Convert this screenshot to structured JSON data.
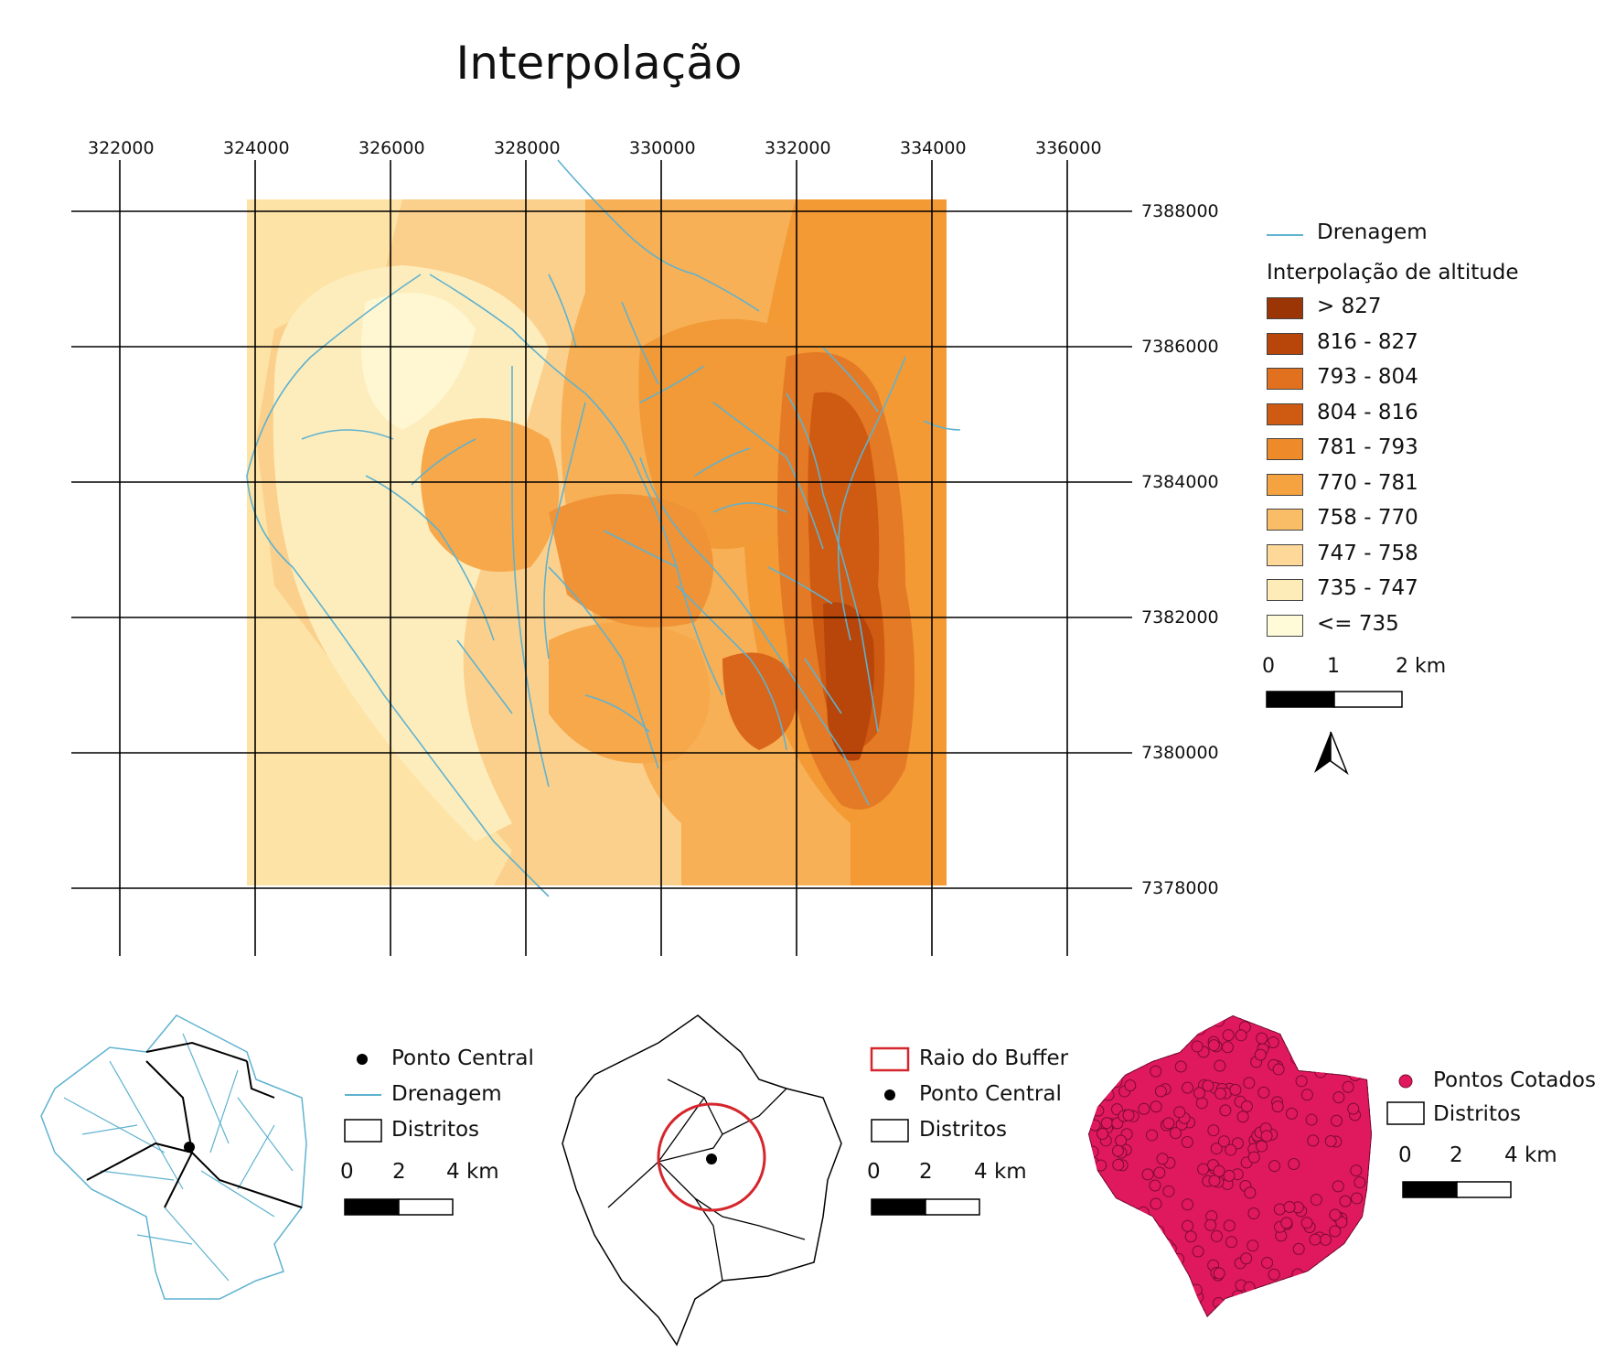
{
  "title": "Interpolação",
  "grid": {
    "x_ticks": [
      "322000",
      "324000",
      "326000",
      "328000",
      "330000",
      "332000",
      "334000",
      "336000"
    ],
    "y_ticks": [
      "7388000",
      "7386000",
      "7384000",
      "7382000",
      "7380000",
      "7378000"
    ]
  },
  "legend": {
    "drainage_label": "Drenagem",
    "raster_title": "Interpolação de altitude",
    "classes": [
      {
        "label": "> 827",
        "color": "#9b3506"
      },
      {
        "label": "816 - 827",
        "color": "#b8450a"
      },
      {
        "label": "793 - 804",
        "color": "#e2711f"
      },
      {
        "label": "804 - 816",
        "color": "#cf5a12"
      },
      {
        "label": "781 - 793",
        "color": "#ee8a2a"
      },
      {
        "label": "770 - 781",
        "color": "#f5a341"
      },
      {
        "label": "758 - 770",
        "color": "#f9bd68"
      },
      {
        "label": "747 - 758",
        "color": "#fdd898"
      },
      {
        "label": "735 - 747",
        "color": "#feecb8"
      },
      {
        "label": "<= 735",
        "color": "#fffbd9"
      }
    ],
    "scale": {
      "labels": [
        "0",
        "1",
        "2 km"
      ]
    },
    "north_arrow": "north-arrow-icon"
  },
  "insets": [
    {
      "legend": [
        {
          "symbol": "point",
          "label": "Ponto Central"
        },
        {
          "symbol": "line",
          "label": "Drenagem"
        },
        {
          "symbol": "polygon",
          "label": "Distritos"
        }
      ],
      "scale": {
        "labels": [
          "0",
          "2",
          "4 km"
        ]
      }
    },
    {
      "legend": [
        {
          "symbol": "circle-outline",
          "label": "Raio do Buffer"
        },
        {
          "symbol": "point",
          "label": "Ponto Central"
        },
        {
          "symbol": "polygon",
          "label": "Distritos"
        }
      ],
      "scale": {
        "labels": [
          "0",
          "2",
          "4 km"
        ]
      }
    },
    {
      "legend": [
        {
          "symbol": "pink-point",
          "label": "Pontos Cotados"
        },
        {
          "symbol": "polygon",
          "label": "Distritos"
        }
      ],
      "scale": {
        "labels": [
          "0",
          "2",
          "4 km"
        ]
      }
    }
  ],
  "colors": {
    "drainage": "#5fb2d0",
    "grid": "#000000",
    "buffer": "#d4262c",
    "points": "#e0185e"
  }
}
